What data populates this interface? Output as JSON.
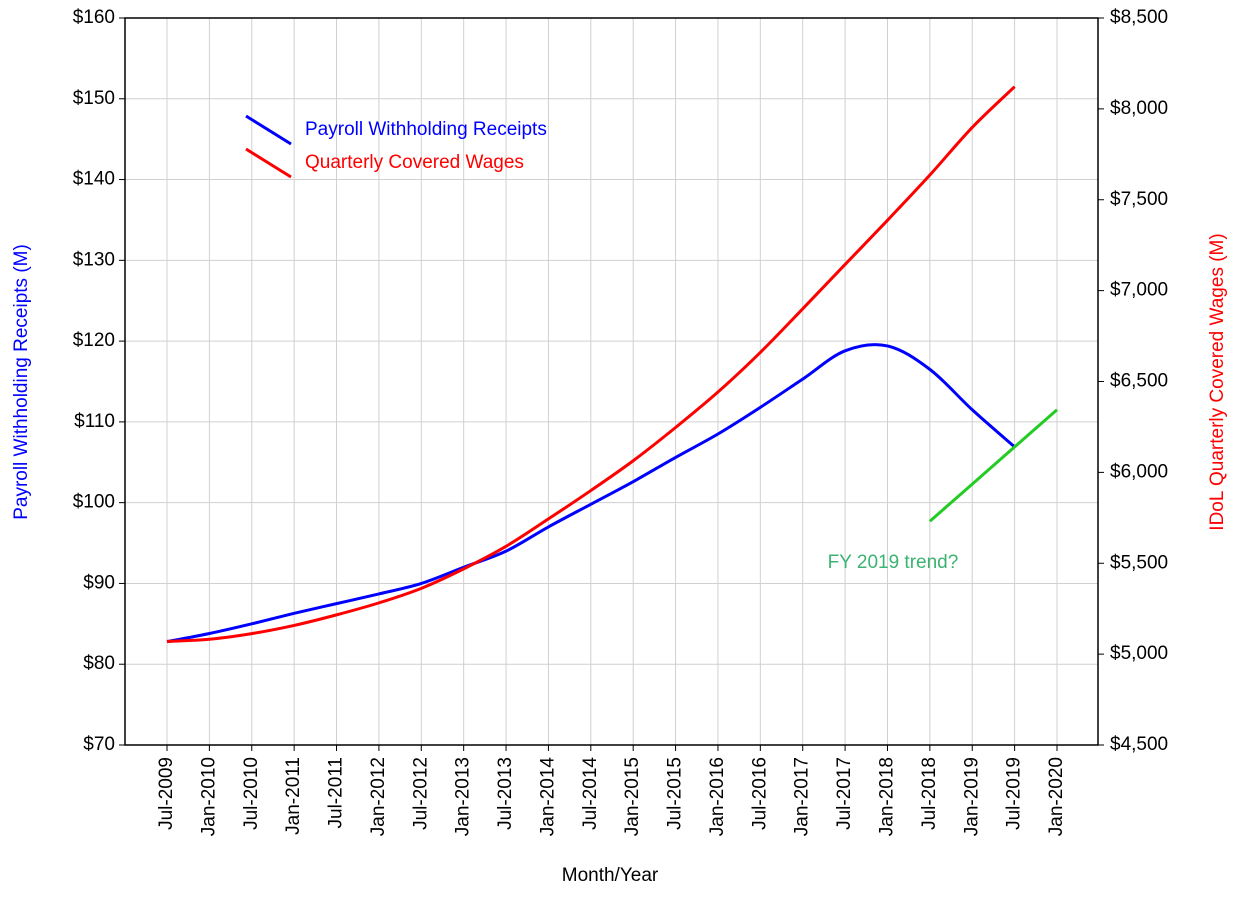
{
  "chart_data": {
    "type": "line",
    "xlabel": "Month/Year",
    "ylabel": "Payroll Withholding Receipts (M)",
    "y2label": "IDoL Quarterly Covered Wages (M)",
    "categories": [
      "Jul-2009",
      "Jan-2010",
      "Jul-2010",
      "Jan-2011",
      "Jul-2011",
      "Jan-2012",
      "Jul-2012",
      "Jan-2013",
      "Jul-2013",
      "Jan-2014",
      "Jul-2014",
      "Jan-2015",
      "Jul-2015",
      "Jan-2016",
      "Jul-2016",
      "Jan-2017",
      "Jul-2017",
      "Jan-2018",
      "Jul-2018",
      "Jan-2019",
      "Jul-2019",
      "Jan-2020"
    ],
    "series": [
      {
        "name": "Payroll Withholding Receipts",
        "color": "#0000ff",
        "axis": "y",
        "values": [
          82.8,
          83.8,
          85.0,
          86.3,
          87.5,
          88.7,
          90.0,
          92.0,
          94.0,
          97.0,
          99.8,
          102.6,
          105.6,
          108.5,
          111.8,
          115.3,
          118.8,
          119.4,
          116.5,
          111.5,
          106.9,
          null
        ]
      },
      {
        "name": "Quarterly Covered Wages",
        "color": "#ff0000",
        "axis": "y2",
        "values": [
          5070,
          5082,
          5113,
          5158,
          5216,
          5282,
          5362,
          5469,
          5593,
          5744,
          5900,
          6064,
          6247,
          6442,
          6660,
          6900,
          7144,
          7387,
          7636,
          7898,
          8122,
          null
        ]
      },
      {
        "color": "#22cc22",
        "axis": "y",
        "values": [
          null,
          null,
          null,
          null,
          null,
          null,
          null,
          null,
          null,
          null,
          null,
          null,
          null,
          null,
          null,
          null,
          null,
          null,
          97.7,
          102.3,
          106.9,
          111.5
        ]
      }
    ],
    "annotations": [
      {
        "text": "FY 2019 trend?",
        "color": "#3cb371"
      }
    ],
    "ylim": [
      70,
      160
    ],
    "yticks": [
      {
        "value": 70,
        "label": "$70"
      },
      {
        "value": 80,
        "label": "$80"
      },
      {
        "value": 90,
        "label": "$90"
      },
      {
        "value": 100,
        "label": "$100"
      },
      {
        "value": 110,
        "label": "$110"
      },
      {
        "value": 120,
        "label": "$120"
      },
      {
        "value": 130,
        "label": "$130"
      },
      {
        "value": 140,
        "label": "$140"
      },
      {
        "value": 150,
        "label": "$150"
      },
      {
        "value": 160,
        "label": "$160"
      }
    ],
    "y2lim": [
      4500,
      8500
    ],
    "y2ticks": [
      {
        "value": 4500,
        "label": "$4,500"
      },
      {
        "value": 5000,
        "label": "$5,000"
      },
      {
        "value": 5500,
        "label": "$5,500"
      },
      {
        "value": 6000,
        "label": "$6,000"
      },
      {
        "value": 6500,
        "label": "$6,500"
      },
      {
        "value": 7000,
        "label": "$7,000"
      },
      {
        "value": 7500,
        "label": "$7,500"
      },
      {
        "value": 8000,
        "label": "$8,000"
      },
      {
        "value": 8500,
        "label": "$8,500"
      }
    ],
    "grid": true,
    "legend": "upper left"
  }
}
